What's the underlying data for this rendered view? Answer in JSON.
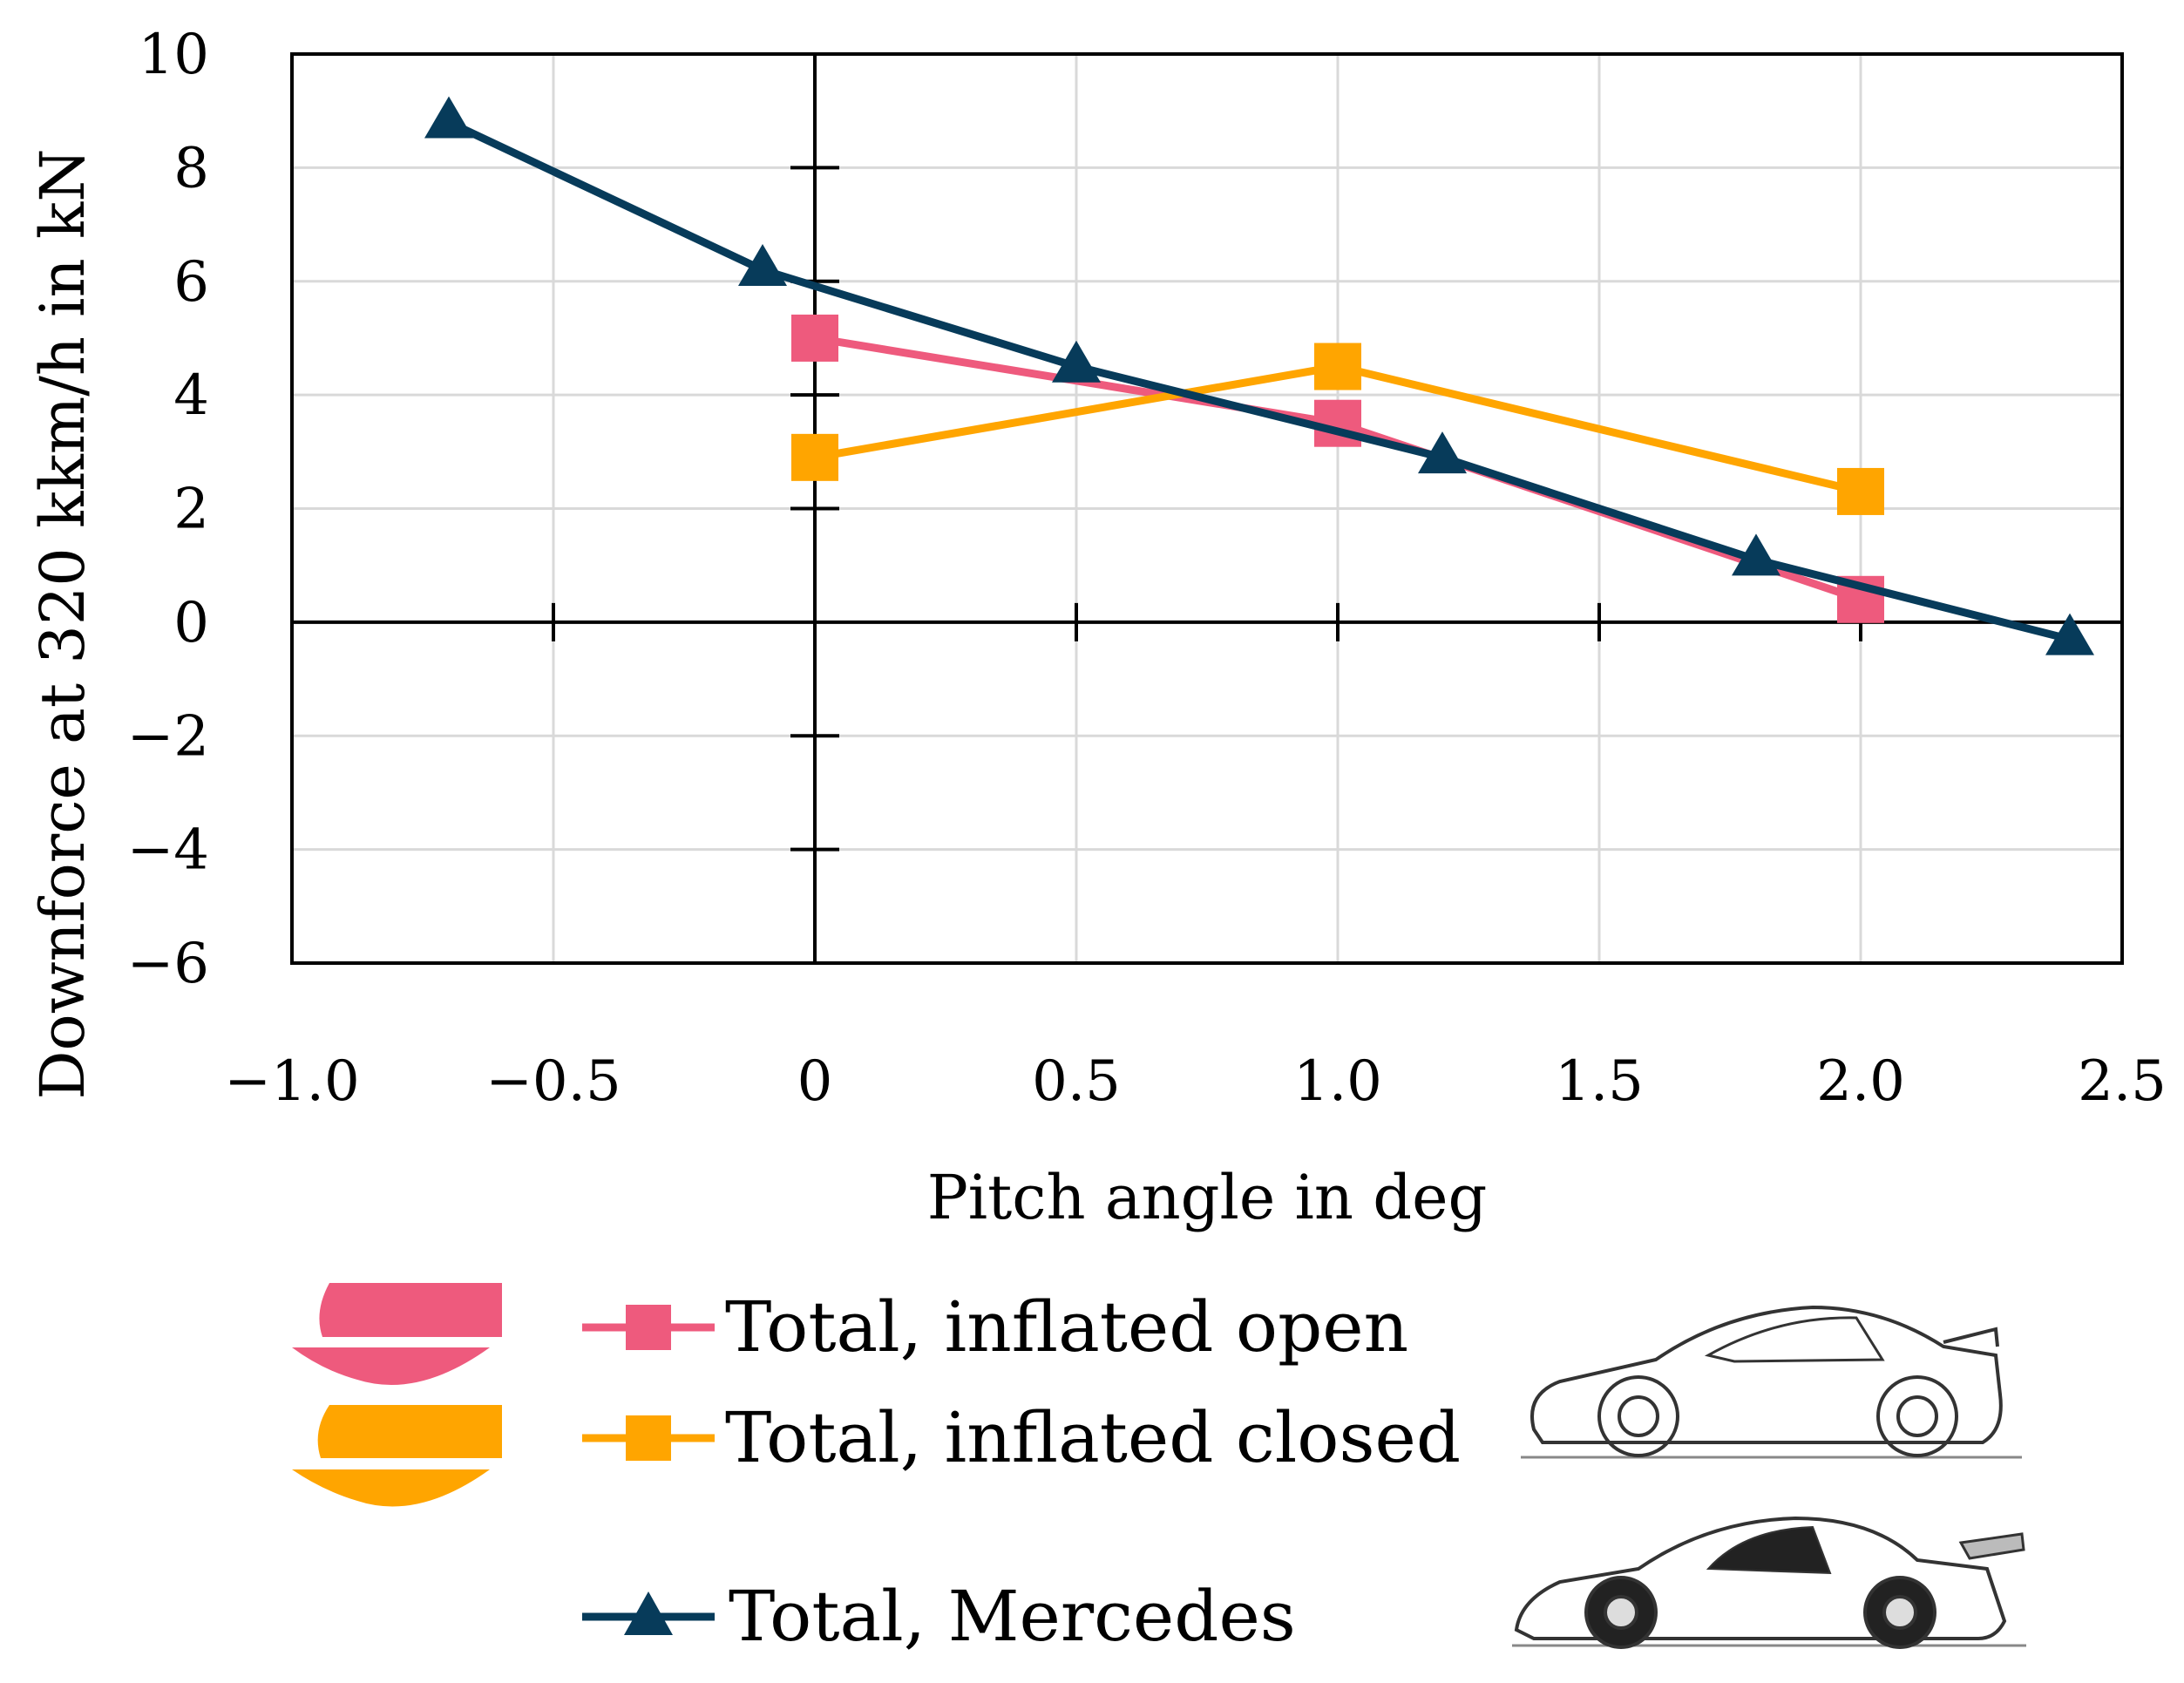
{
  "chart_data": {
    "type": "line",
    "title": "",
    "xlabel": "Pitch angle in deg",
    "ylabel": "Downforce at 320 kkm/h in kN",
    "xlim": [
      -1.0,
      2.5
    ],
    "ylim": [
      -6,
      10
    ],
    "x_ticks": [
      -1.0,
      -0.5,
      0,
      0.5,
      1.0,
      1.5,
      2.0,
      2.5
    ],
    "x_tick_labels": [
      "−1.0",
      "−0.5",
      "0",
      "0.5",
      "1.0",
      "1.5",
      "2.0",
      "2.5"
    ],
    "y_ticks": [
      -6,
      -4,
      -2,
      0,
      2,
      4,
      6,
      8,
      10
    ],
    "y_tick_labels": [
      "−6",
      "−4",
      "−2",
      "0",
      "2",
      "4",
      "6",
      "8",
      "10"
    ],
    "grid": true,
    "legend_position": "below",
    "series": [
      {
        "name": "Total, inflated open",
        "color": "#EE5A7D",
        "marker": "square",
        "x": [
          0,
          1.0,
          2.0
        ],
        "y": [
          5.0,
          3.5,
          0.4
        ]
      },
      {
        "name": "Total, inflated closed",
        "color": "#FFA500",
        "marker": "square",
        "x": [
          0,
          1.0,
          2.0
        ],
        "y": [
          2.9,
          4.5,
          2.3
        ]
      },
      {
        "name": "Total, Mercedes",
        "color": "#073B5A",
        "marker": "triangle",
        "x": [
          -0.7,
          -0.1,
          0.5,
          1.2,
          1.8,
          2.4
        ],
        "y": [
          8.8,
          6.2,
          4.5,
          2.9,
          1.1,
          -0.3
        ]
      }
    ]
  },
  "legend_icons": {
    "open_profile_icon": "pink-profile-shape",
    "closed_profile_icon": "orange-profile-shape",
    "road_car_icon": "sports-car-sketch-icon",
    "race_car_icon": "race-car-sketch-icon"
  }
}
